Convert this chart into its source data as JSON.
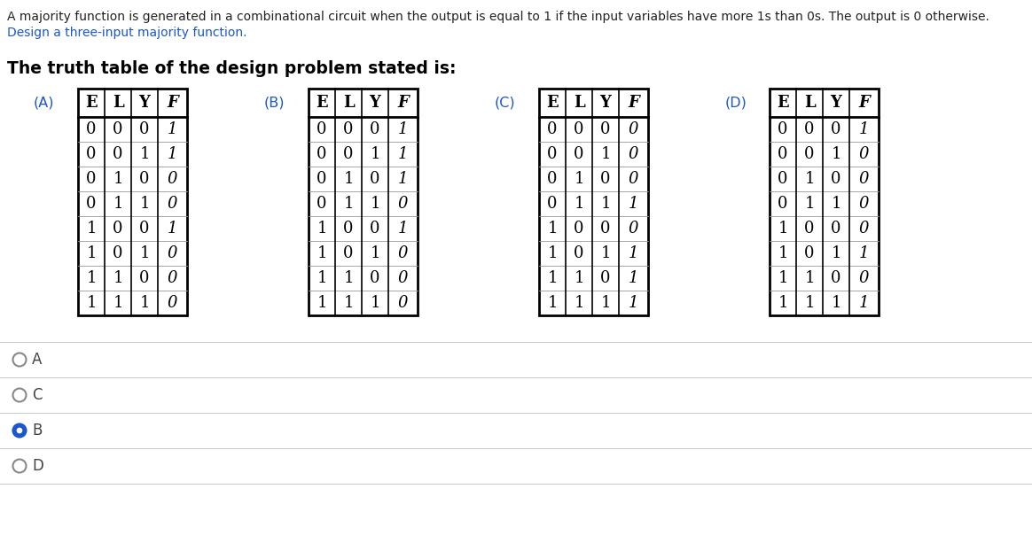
{
  "description_line1": "A majority function is generated in a combinational circuit when the output is equal to 1 if the input variables have more 1s than 0s. The output is 0 otherwise.",
  "description_line2": "Design a three-input majority function.",
  "title_text": "The truth table of the design problem stated is:",
  "tables": [
    {
      "label": "(A)",
      "headers": [
        "E",
        "L",
        "Y",
        "F"
      ],
      "rows": [
        [
          "0",
          "0",
          "0",
          "1"
        ],
        [
          "0",
          "0",
          "1",
          "1"
        ],
        [
          "0",
          "1",
          "0",
          "0"
        ],
        [
          "0",
          "1",
          "1",
          "0"
        ],
        [
          "1",
          "0",
          "0",
          "1"
        ],
        [
          "1",
          "0",
          "1",
          "0"
        ],
        [
          "1",
          "1",
          "0",
          "0"
        ],
        [
          "1",
          "1",
          "1",
          "0"
        ]
      ]
    },
    {
      "label": "(B)",
      "headers": [
        "E",
        "L",
        "Y",
        "F"
      ],
      "rows": [
        [
          "0",
          "0",
          "0",
          "1"
        ],
        [
          "0",
          "0",
          "1",
          "1"
        ],
        [
          "0",
          "1",
          "0",
          "1"
        ],
        [
          "0",
          "1",
          "1",
          "0"
        ],
        [
          "1",
          "0",
          "0",
          "1"
        ],
        [
          "1",
          "0",
          "1",
          "0"
        ],
        [
          "1",
          "1",
          "0",
          "0"
        ],
        [
          "1",
          "1",
          "1",
          "0"
        ]
      ]
    },
    {
      "label": "(C)",
      "headers": [
        "E",
        "L",
        "Y",
        "F"
      ],
      "rows": [
        [
          "0",
          "0",
          "0",
          "0"
        ],
        [
          "0",
          "0",
          "1",
          "0"
        ],
        [
          "0",
          "1",
          "0",
          "0"
        ],
        [
          "0",
          "1",
          "1",
          "1"
        ],
        [
          "1",
          "0",
          "0",
          "0"
        ],
        [
          "1",
          "0",
          "1",
          "1"
        ],
        [
          "1",
          "1",
          "0",
          "1"
        ],
        [
          "1",
          "1",
          "1",
          "1"
        ]
      ]
    },
    {
      "label": "(D)",
      "headers": [
        "E",
        "L",
        "Y",
        "F"
      ],
      "rows": [
        [
          "0",
          "0",
          "0",
          "1"
        ],
        [
          "0",
          "0",
          "1",
          "0"
        ],
        [
          "0",
          "1",
          "0",
          "0"
        ],
        [
          "0",
          "1",
          "1",
          "0"
        ],
        [
          "1",
          "0",
          "0",
          "0"
        ],
        [
          "1",
          "0",
          "1",
          "1"
        ],
        [
          "1",
          "1",
          "0",
          "0"
        ],
        [
          "1",
          "1",
          "1",
          "1"
        ]
      ]
    }
  ],
  "options": [
    "A",
    "C",
    "B",
    "D"
  ],
  "selected_option": "B",
  "bg_color": "#ffffff",
  "desc_color": "#222222",
  "link_color": "#1a56cc",
  "title_color": "#000000",
  "table_label_color": "#1a56cc",
  "option_text_color": "#444444",
  "selected_ring_color": "#1a56cc",
  "unselected_ring_color": "#888888",
  "sep_line_color": "#cccccc",
  "cell_border_color": "#000000",
  "inner_border_color": "#999999",
  "desc_fontsize": 10.0,
  "title_fontsize": 13.5,
  "label_fontsize": 11.5,
  "header_fontsize": 13.0,
  "data_fontsize": 13.0,
  "option_fontsize": 12.0
}
